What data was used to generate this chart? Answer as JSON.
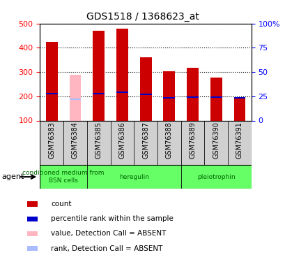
{
  "title": "GDS1518 / 1368623_at",
  "samples": [
    "GSM76383",
    "GSM76384",
    "GSM76385",
    "GSM76386",
    "GSM76387",
    "GSM76388",
    "GSM76389",
    "GSM76390",
    "GSM76391"
  ],
  "counts": [
    425,
    null,
    470,
    478,
    362,
    302,
    317,
    278,
    195
  ],
  "ranks": [
    210,
    null,
    210,
    218,
    208,
    195,
    197,
    197,
    195
  ],
  "absent_value": [
    null,
    288,
    null,
    null,
    null,
    null,
    null,
    null,
    null
  ],
  "absent_rank": [
    null,
    188,
    null,
    null,
    null,
    null,
    null,
    null,
    null
  ],
  "agents": [
    {
      "label": "conditioned medium from\nBSN cells",
      "start": 0,
      "end": 2
    },
    {
      "label": "heregulin",
      "start": 2,
      "end": 6
    },
    {
      "label": "pleiotrophin",
      "start": 6,
      "end": 9
    }
  ],
  "ylim_left": [
    100,
    500
  ],
  "ylim_right": [
    0,
    100
  ],
  "bar_color_present": "#cc0000",
  "bar_color_absent": "#ffb6c1",
  "rank_color_present": "#0000cc",
  "rank_color_absent": "#aabbff",
  "bar_width": 0.5,
  "green_color": "#66ff66",
  "gray_color": "#d0d0d0",
  "legend_items": [
    [
      "#cc0000",
      "count"
    ],
    [
      "#0000cc",
      "percentile rank within the sample"
    ],
    [
      "#ffb6c1",
      "value, Detection Call = ABSENT"
    ],
    [
      "#aabbff",
      "rank, Detection Call = ABSENT"
    ]
  ]
}
